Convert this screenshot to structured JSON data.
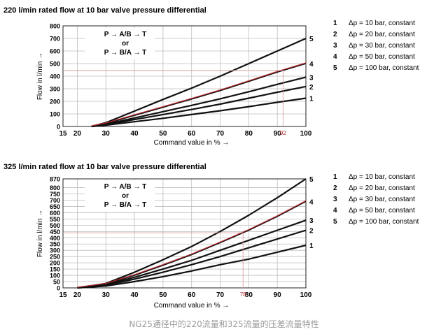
{
  "caption": "NG25通径中的220流量和325流量的压差流量特性",
  "colors": {
    "curve": "#111111",
    "highlight": "#b3262b",
    "grid": "#bdbdbd",
    "refline": "#d89598"
  },
  "chart_data": [
    {
      "type": "line",
      "title": "220 l/min rated flow at 10 bar valve pressure differential",
      "xlabel": "Command value in % →",
      "ylabel": "Flow in l/min →",
      "xlim": [
        15,
        100
      ],
      "ylim": [
        0,
        800
      ],
      "x_ticks": [
        15,
        20,
        30,
        40,
        50,
        60,
        70,
        80,
        90,
        100
      ],
      "y_ticks": [
        0,
        100,
        200,
        300,
        400,
        500,
        600,
        700,
        800
      ],
      "grid": true,
      "box_text": [
        "P → A/B → T",
        "or",
        "P → B/A → T"
      ],
      "marked_x": 92,
      "marked_x_label": "92",
      "legend_position": "right",
      "legend": [
        {
          "num": "1",
          "label": "Δp = 10 bar, constant"
        },
        {
          "num": "2",
          "label": "Δp = 20 bar, constant"
        },
        {
          "num": "3",
          "label": "Δp = 30 bar, constant"
        },
        {
          "num": "4",
          "label": "Δp = 50 bar, constant"
        },
        {
          "num": "5",
          "label": "Δp = 100 bar, constant"
        }
      ],
      "series": [
        {
          "name": "1",
          "x": [
            25,
            30,
            40,
            50,
            60,
            70,
            80,
            90,
            100
          ],
          "values": [
            0,
            10,
            38,
            65,
            95,
            125,
            158,
            192,
            225
          ]
        },
        {
          "name": "2",
          "x": [
            25,
            30,
            40,
            50,
            60,
            70,
            80,
            90,
            100
          ],
          "values": [
            0,
            14,
            55,
            95,
            135,
            178,
            225,
            272,
            318
          ]
        },
        {
          "name": "3",
          "x": [
            25,
            30,
            40,
            50,
            60,
            70,
            80,
            90,
            100
          ],
          "values": [
            0,
            18,
            68,
            118,
            168,
            220,
            276,
            335,
            392
          ]
        },
        {
          "name": "4",
          "x": [
            25,
            30,
            40,
            50,
            60,
            70,
            80,
            90,
            100
          ],
          "values": [
            0,
            22,
            88,
            152,
            218,
            285,
            358,
            432,
            500
          ],
          "highlight": true
        },
        {
          "name": "5",
          "x": [
            25,
            30,
            40,
            50,
            60,
            70,
            80,
            90,
            100
          ],
          "values": [
            0,
            30,
            122,
            215,
            305,
            400,
            500,
            600,
            700
          ]
        }
      ]
    },
    {
      "type": "line",
      "title": "325 l/min rated flow at 10 bar valve pressure differential",
      "xlabel": "Command value in % →",
      "ylabel": "Flow in l/min →",
      "xlim": [
        15,
        100
      ],
      "ylim": [
        0,
        870
      ],
      "x_ticks": [
        15,
        20,
        30,
        40,
        50,
        60,
        70,
        80,
        90,
        100
      ],
      "y_ticks": [
        0,
        50,
        100,
        150,
        200,
        250,
        300,
        350,
        400,
        450,
        500,
        550,
        600,
        650,
        700,
        750,
        800,
        870
      ],
      "grid": true,
      "box_text": [
        "P → A/B → T",
        "or",
        "P → B/A → T"
      ],
      "marked_x": 78,
      "marked_x_label": "78",
      "legend_position": "right",
      "legend": [
        {
          "num": "1",
          "label": "Δp = 10 bar, constant"
        },
        {
          "num": "2",
          "label": "Δp = 20 bar, constant"
        },
        {
          "num": "3",
          "label": "Δp = 30 bar, constant"
        },
        {
          "num": "4",
          "label": "Δp = 50 bar, constant"
        },
        {
          "num": "5",
          "label": "Δp = 100 bar, constant"
        }
      ],
      "series": [
        {
          "name": "1",
          "x": [
            20,
            30,
            40,
            50,
            60,
            70,
            80,
            90,
            100
          ],
          "values": [
            0,
            15,
            50,
            90,
            135,
            185,
            230,
            285,
            340
          ]
        },
        {
          "name": "2",
          "x": [
            20,
            30,
            40,
            50,
            60,
            70,
            80,
            90,
            100
          ],
          "values": [
            0,
            20,
            70,
            125,
            185,
            250,
            320,
            390,
            460
          ]
        },
        {
          "name": "3",
          "x": [
            20,
            30,
            40,
            50,
            60,
            70,
            80,
            90,
            100
          ],
          "values": [
            0,
            25,
            85,
            150,
            220,
            300,
            380,
            460,
            540
          ]
        },
        {
          "name": "4",
          "x": [
            20,
            30,
            40,
            50,
            60,
            70,
            80,
            90,
            100
          ],
          "values": [
            0,
            30,
            100,
            180,
            265,
            360,
            460,
            570,
            690
          ],
          "highlight": true
        },
        {
          "name": "5",
          "x": [
            20,
            30,
            40,
            50,
            60,
            70,
            80,
            90,
            100
          ],
          "values": [
            0,
            35,
            125,
            225,
            330,
            450,
            580,
            720,
            870
          ]
        }
      ]
    }
  ]
}
